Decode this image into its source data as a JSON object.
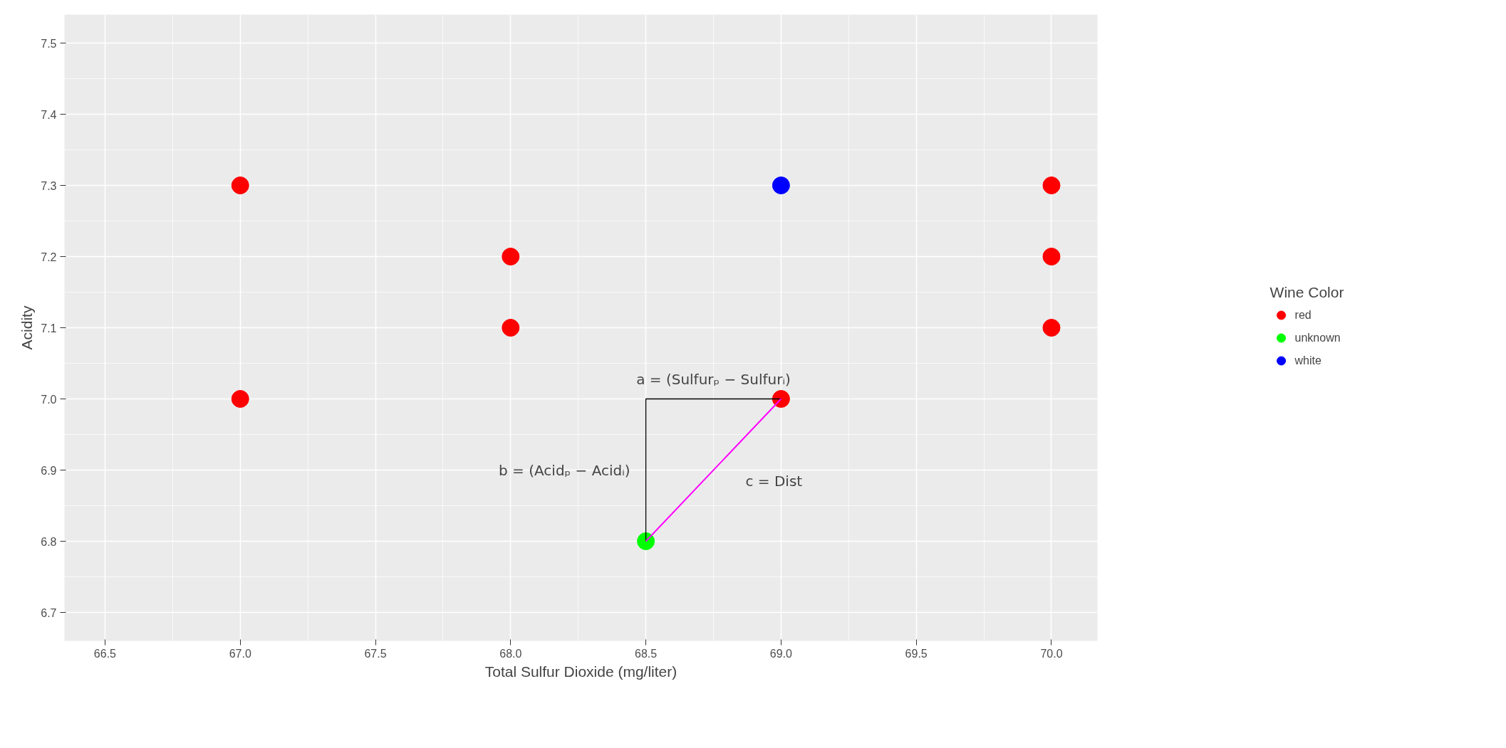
{
  "chart_data": {
    "type": "scatter",
    "xlabel": "Total Sulfur Dioxide (mg/liter)",
    "ylabel": "Acidity",
    "legend_title": "Wine Color",
    "legend": "right",
    "grid": true,
    "xlim": [
      66.35,
      70.17
    ],
    "ylim": [
      6.66,
      7.54
    ],
    "xticks": [
      66.5,
      {
        "value": 67,
        "label": "67.0"
      },
      67.5,
      {
        "value": 68,
        "label": "68.0"
      },
      68.5,
      {
        "value": 69,
        "label": "69.0"
      },
      69.5,
      {
        "value": 70,
        "label": "70.0"
      }
    ],
    "yticks": [
      6.7,
      6.8,
      6.9,
      {
        "value": 7,
        "label": "7.0"
      },
      7.1,
      7.2,
      7.3,
      7.4,
      7.5
    ],
    "series": [
      {
        "name": "red",
        "color": "#ff0000",
        "marker": "circle",
        "x": [
          67,
          67,
          68,
          68,
          69,
          70,
          70,
          70
        ],
        "values": [
          7.3,
          7.0,
          7.2,
          7.1,
          7.0,
          7.3,
          7.2,
          7.1
        ]
      },
      {
        "name": "unknown",
        "color": "#00ff00",
        "marker": "circle",
        "x": [
          68.5
        ],
        "values": [
          6.8
        ]
      },
      {
        "name": "white",
        "color": "#0000ff",
        "marker": "circle",
        "x": [
          69
        ],
        "values": [
          7.3
        ]
      },
      {
        "type": "line",
        "color": "#000000",
        "marker": "none",
        "x": [
          68.5,
          68.5,
          69
        ],
        "values": [
          6.8,
          7.0,
          7.0
        ]
      },
      {
        "type": "line",
        "color": "#ff00ff",
        "marker": "none",
        "x": [
          68.5,
          69
        ],
        "values": [
          6.8,
          7.0
        ]
      }
    ],
    "annotations": [
      "b = (Acidₚ − Acidᵢ)",
      "a = (Sulfurₚ − Sulfurᵢ)",
      "c = Dist"
    ]
  }
}
